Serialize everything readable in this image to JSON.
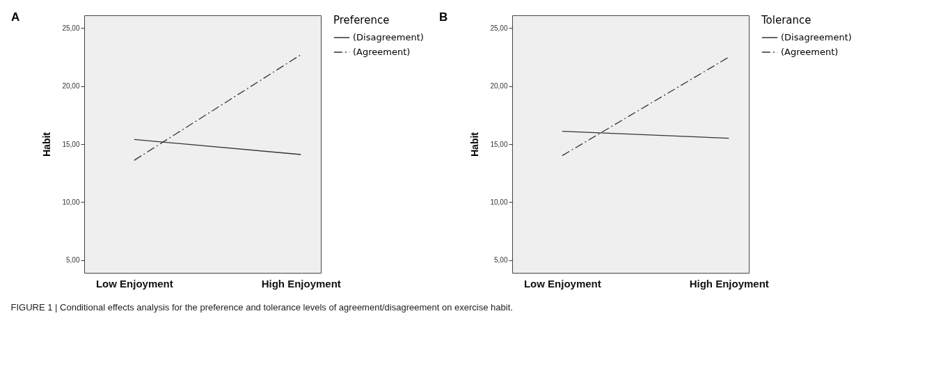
{
  "chart_data": [
    {
      "type": "line",
      "title": "A",
      "ylabel": "Habit",
      "legend_title": "Preference",
      "categories": [
        "Low Enjoyment",
        "High Enjoyment"
      ],
      "series": [
        {
          "name": "(Disagreement)",
          "color": "#333333",
          "line_style": "solid",
          "values": [
            15.4,
            14.1
          ]
        },
        {
          "name": "(Agreement)",
          "color": "#333333",
          "line_style": "dashed",
          "values": [
            13.6,
            22.7
          ]
        }
      ],
      "ylim": [
        3.9,
        26.1
      ],
      "yticks": [
        {
          "value": 5,
          "label": "5,00"
        },
        {
          "value": 10,
          "label": "10,00"
        },
        {
          "value": 15,
          "label": "15,00"
        },
        {
          "value": 20,
          "label": "20,00"
        },
        {
          "value": 25,
          "label": "25,00"
        }
      ],
      "grid": false,
      "legend": "right",
      "marker": "none",
      "annotations": [
        "FIGURE 1 | Conditional effects analysis for the preference and tolerance levels of agreement/disagreement on exercise habit."
      ]
    },
    {
      "type": "line",
      "title": "B",
      "ylabel": "Habit",
      "legend_title": "Tolerance",
      "categories": [
        "Low Enjoyment",
        "High Enjoyment"
      ],
      "series": [
        {
          "name": "(Disagreement)",
          "color": "#333333",
          "line_style": "solid",
          "values": [
            16.1,
            15.5
          ]
        },
        {
          "name": "(Agreement)",
          "color": "#333333",
          "line_style": "dashed",
          "values": [
            14.0,
            22.5
          ]
        }
      ],
      "ylim": [
        3.9,
        26.1
      ],
      "yticks": [
        {
          "value": 5,
          "label": "5,00"
        },
        {
          "value": 10,
          "label": "10,00"
        },
        {
          "value": 15,
          "label": "15,00"
        },
        {
          "value": 20,
          "label": "20,00"
        },
        {
          "value": 25,
          "label": "25,00"
        }
      ],
      "grid": false,
      "legend": "right",
      "marker": "none"
    }
  ]
}
